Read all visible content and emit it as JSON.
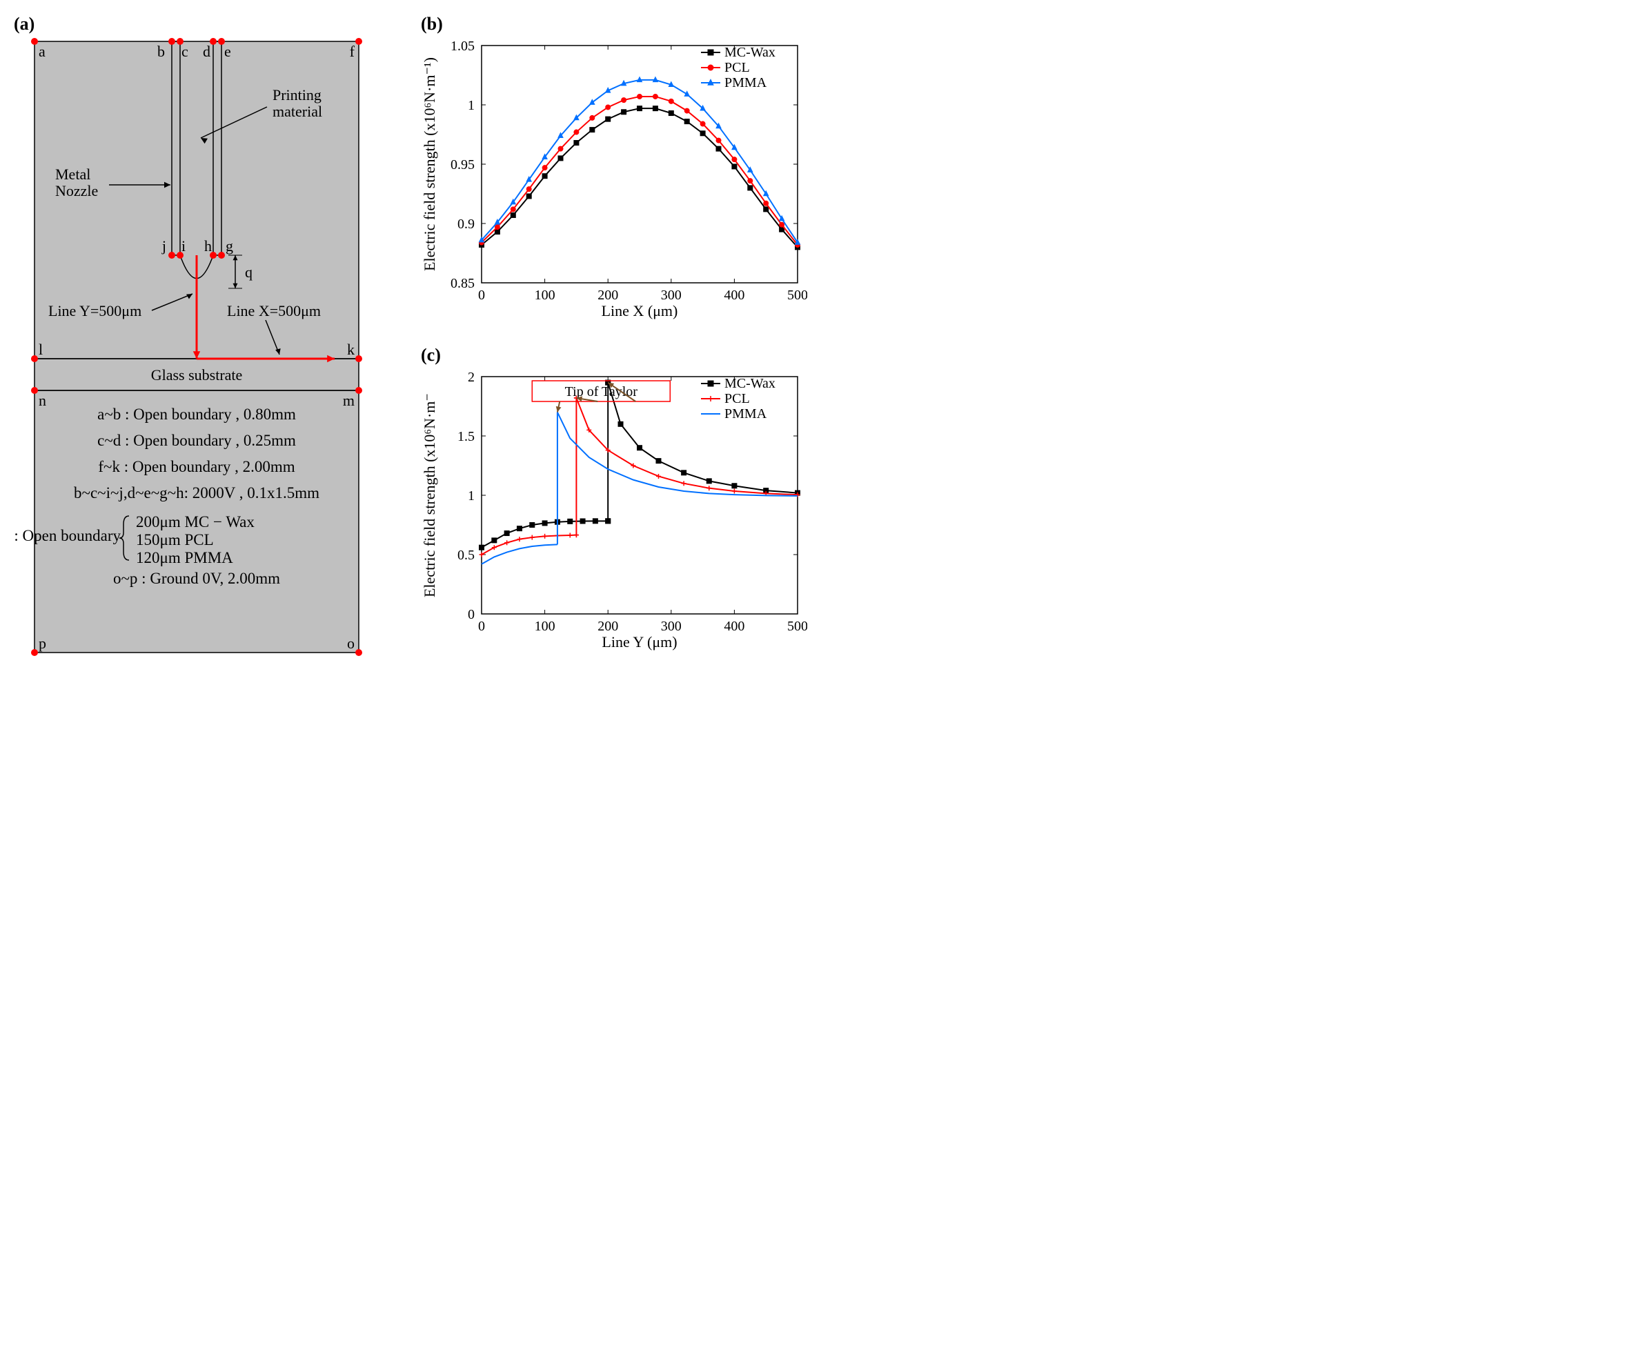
{
  "panelLabels": {
    "a": "(a)",
    "b": "(b)",
    "c": "(c)"
  },
  "diagram": {
    "background": "#c0c0c0",
    "outline": "#000000",
    "nodeColor": "#ff0000",
    "arrowColor": "#ff0000",
    "nodes": {
      "a": "a",
      "b": "b",
      "c": "c",
      "d": "d",
      "e": "e",
      "f": "f",
      "j": "j",
      "i": "i",
      "h": "h",
      "g": "g",
      "l": "l",
      "k": "k",
      "n": "n",
      "m": "m",
      "p": "p",
      "o": "o"
    },
    "annotations": {
      "printingMaterial": "Printing\nmaterial",
      "metalNozzle": "Metal\nNozzle",
      "q": "q",
      "lineY": "Line Y=500μm",
      "lineX": "Line X=500μm",
      "glassSubstrate": "Glass substrate"
    },
    "boundary": {
      "l1": "a~b : Open boundary , 0.80mm",
      "l2": "c~d : Open boundary , 0.25mm",
      "l3": "f~k : Open boundary , 2.00mm",
      "l4": "b~c~i~j,d~e~g~h: 2000V , 0.1x1.5mm",
      "l5a": "q : Open boundary",
      "l5b1": "200μm MC − Wax",
      "l5b2": "150μm PCL",
      "l5b3": "120μm PMMA",
      "l6": "o~p : Ground 0V, 2.00mm"
    }
  },
  "chartB": {
    "type": "line",
    "title": "",
    "xlabel": "Line X (μm)",
    "ylabel": "Electric field strength (x10⁶N·m⁻¹)",
    "xlim": [
      0,
      500
    ],
    "xticks": [
      0,
      100,
      200,
      300,
      400,
      500
    ],
    "ylim": [
      0.85,
      1.05
    ],
    "yticks": [
      0.85,
      0.9,
      0.95,
      1.0,
      1.05
    ],
    "background_color": "#ffffff",
    "axis_color": "#000000",
    "label_fontsize": 22,
    "tick_fontsize": 20,
    "series": [
      {
        "name": "MC-Wax",
        "color": "#000000",
        "marker": "square",
        "x": [
          0,
          25,
          50,
          75,
          100,
          125,
          150,
          175,
          200,
          225,
          250,
          275,
          300,
          325,
          350,
          375,
          400,
          425,
          450,
          475,
          500
        ],
        "y": [
          0.882,
          0.893,
          0.907,
          0.923,
          0.94,
          0.955,
          0.968,
          0.979,
          0.988,
          0.994,
          0.997,
          0.997,
          0.993,
          0.986,
          0.976,
          0.963,
          0.948,
          0.93,
          0.912,
          0.895,
          0.88
        ]
      },
      {
        "name": "PCL",
        "color": "#ff0000",
        "marker": "circle",
        "x": [
          0,
          25,
          50,
          75,
          100,
          125,
          150,
          175,
          200,
          225,
          250,
          275,
          300,
          325,
          350,
          375,
          400,
          425,
          450,
          475,
          500
        ],
        "y": [
          0.884,
          0.897,
          0.912,
          0.929,
          0.947,
          0.963,
          0.977,
          0.989,
          0.998,
          1.004,
          1.007,
          1.007,
          1.003,
          0.995,
          0.984,
          0.97,
          0.954,
          0.936,
          0.917,
          0.899,
          0.882
        ]
      },
      {
        "name": "PMMA",
        "color": "#0070ff",
        "marker": "triangle",
        "x": [
          0,
          25,
          50,
          75,
          100,
          125,
          150,
          175,
          200,
          225,
          250,
          275,
          300,
          325,
          350,
          375,
          400,
          425,
          450,
          475,
          500
        ],
        "y": [
          0.886,
          0.901,
          0.918,
          0.937,
          0.956,
          0.974,
          0.989,
          1.002,
          1.012,
          1.018,
          1.021,
          1.021,
          1.017,
          1.009,
          0.997,
          0.982,
          0.964,
          0.945,
          0.925,
          0.904,
          0.884
        ]
      }
    ]
  },
  "chartC": {
    "type": "line",
    "xlabel": "Line Y (μm)",
    "ylabel": "Electric field strength (x10⁶N·m⁻",
    "xlim": [
      0,
      500
    ],
    "xticks": [
      0,
      100,
      200,
      300,
      400,
      500
    ],
    "ylim": [
      0,
      2.0
    ],
    "yticks": [
      0,
      0.5,
      1.0,
      1.5,
      2.0
    ],
    "background_color": "#ffffff",
    "axis_color": "#000000",
    "callout": {
      "label": "Tip of Taylor",
      "box_color": "#ff0000",
      "arrow_color": "#7a5227"
    },
    "series": [
      {
        "name": "MC-Wax",
        "color": "#000000",
        "marker": "square",
        "segments": [
          {
            "x": [
              0,
              20,
              40,
              60,
              80,
              100,
              120,
              140,
              160,
              180,
              200
            ],
            "y": [
              0.56,
              0.62,
              0.68,
              0.72,
              0.75,
              0.765,
              0.775,
              0.78,
              0.782,
              0.783,
              0.783
            ]
          },
          {
            "x": [
              200,
              200
            ],
            "y": [
              0.783,
              1.95
            ]
          },
          {
            "x": [
              200,
              220,
              250,
              280,
              320,
              360,
              400,
              450,
              500
            ],
            "y": [
              1.95,
              1.6,
              1.4,
              1.29,
              1.19,
              1.12,
              1.08,
              1.04,
              1.02
            ]
          }
        ]
      },
      {
        "name": "PCL",
        "color": "#ff0000",
        "marker": "plus",
        "segments": [
          {
            "x": [
              0,
              20,
              40,
              60,
              80,
              100,
              120,
              140,
              150
            ],
            "y": [
              0.5,
              0.56,
              0.6,
              0.63,
              0.645,
              0.655,
              0.66,
              0.663,
              0.665
            ]
          },
          {
            "x": [
              150,
              150
            ],
            "y": [
              0.665,
              1.82
            ]
          },
          {
            "x": [
              150,
              170,
              200,
              240,
              280,
              320,
              360,
              400,
              450,
              500
            ],
            "y": [
              1.82,
              1.55,
              1.38,
              1.25,
              1.16,
              1.1,
              1.06,
              1.035,
              1.015,
              1.005
            ]
          }
        ]
      },
      {
        "name": "PMMA",
        "color": "#0070ff",
        "marker": "none",
        "segments": [
          {
            "x": [
              0,
              20,
              40,
              60,
              80,
              100,
              120
            ],
            "y": [
              0.42,
              0.48,
              0.52,
              0.55,
              0.57,
              0.58,
              0.585
            ]
          },
          {
            "x": [
              120,
              120
            ],
            "y": [
              0.585,
              1.7
            ]
          },
          {
            "x": [
              120,
              140,
              170,
              200,
              240,
              280,
              320,
              360,
              400,
              450,
              500
            ],
            "y": [
              1.7,
              1.48,
              1.32,
              1.22,
              1.13,
              1.07,
              1.035,
              1.015,
              1.005,
              0.998,
              0.995
            ]
          }
        ]
      }
    ]
  }
}
